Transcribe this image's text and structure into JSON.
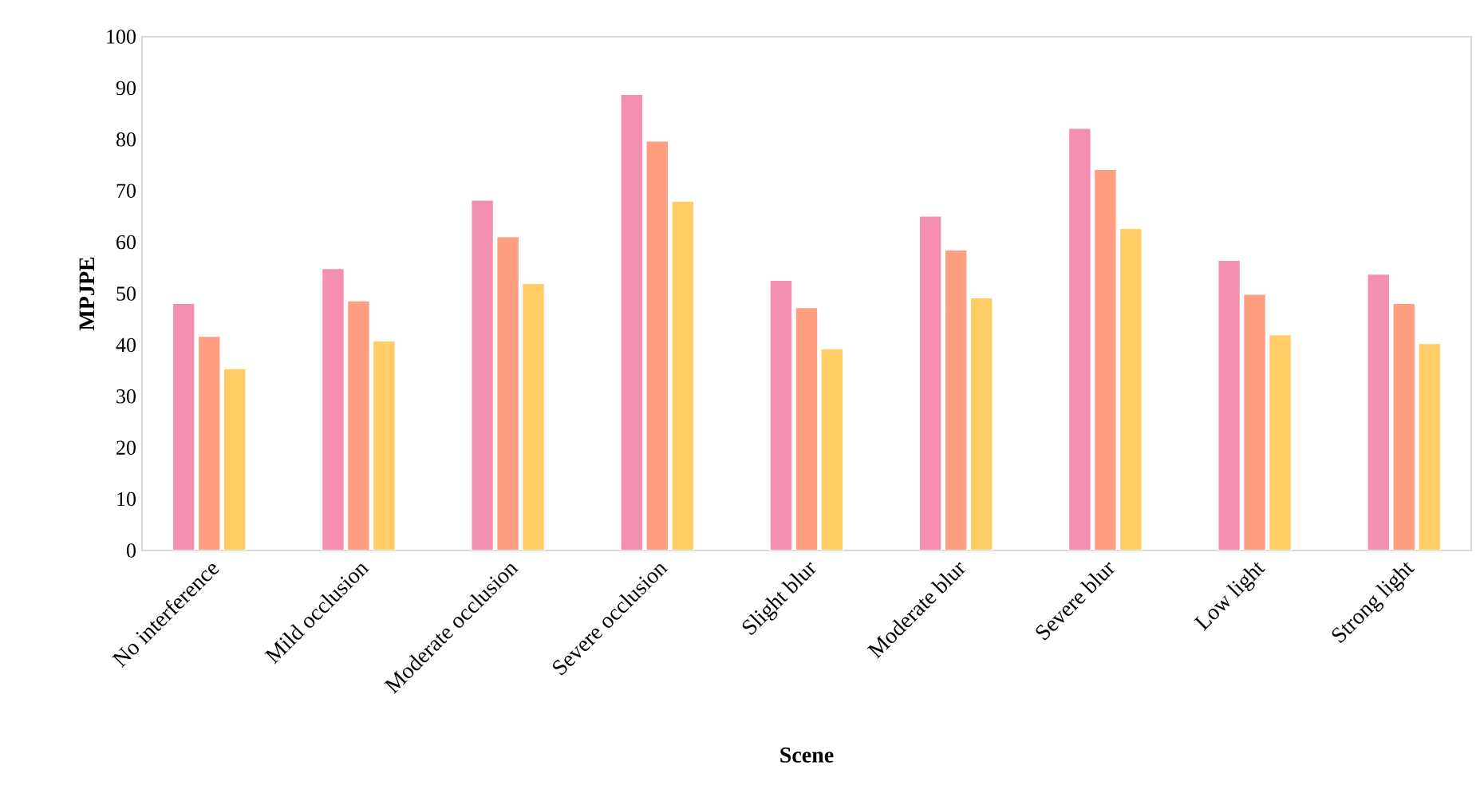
{
  "chart_data": {
    "type": "bar",
    "xlabel": "Scene",
    "ylabel": "MPJPE",
    "categories": [
      "No interference",
      "Mild occlusion",
      "Moderate occlusion",
      "Severe occlusion",
      "Slight blur",
      "Moderate blur",
      "Severe blur",
      "Low light",
      "Strong light"
    ],
    "series": [
      {
        "color": "#f48fb1",
        "values": [
          48.1,
          54.9,
          68.2,
          88.8,
          52.6,
          65.1,
          82.2,
          56.5,
          53.8
        ]
      },
      {
        "color": "#ff9e80",
        "values": [
          41.7,
          48.6,
          61.1,
          79.7,
          47.3,
          58.5,
          74.2,
          49.9,
          48.1
        ]
      },
      {
        "color": "#ffcc66",
        "values": [
          35.4,
          40.8,
          52.0,
          68.0,
          39.3,
          49.2,
          62.7,
          42.0,
          40.3
        ]
      }
    ],
    "ylim": [
      0,
      100
    ],
    "yticks": [
      0,
      10,
      20,
      30,
      40,
      50,
      60,
      70,
      80,
      90,
      100
    ]
  }
}
